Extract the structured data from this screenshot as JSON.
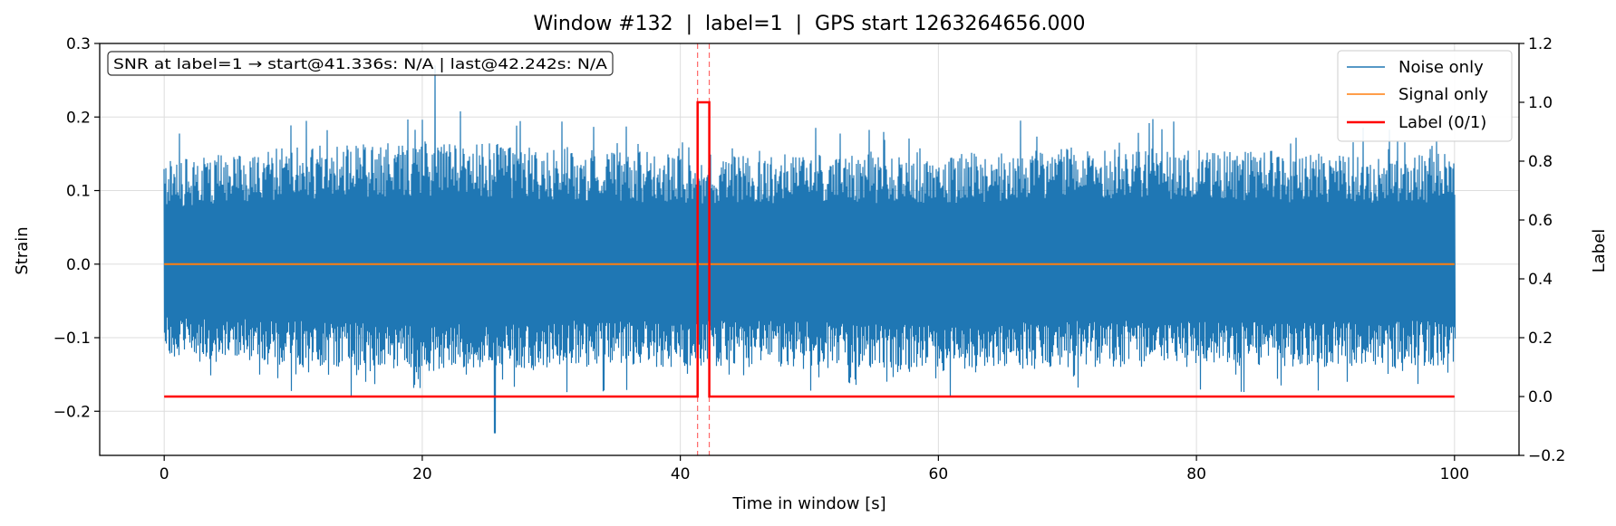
{
  "chart_data": {
    "type": "line",
    "title": "Window #132  |  label=1  |  GPS start 1263264656.000",
    "xlabel": "Time in window [s]",
    "ylabel": "Strain",
    "y2label": "Label",
    "xlim": [
      -5,
      105
    ],
    "ylim": [
      -0.26,
      0.3
    ],
    "y2lim": [
      -0.2,
      1.2
    ],
    "x_ticks": [
      0,
      20,
      40,
      60,
      80,
      100
    ],
    "x_tick_labels": [
      "0",
      "20",
      "40",
      "60",
      "80",
      "100"
    ],
    "y_ticks": [
      -0.2,
      -0.1,
      0.0,
      0.1,
      0.2,
      0.3
    ],
    "y_tick_labels": [
      "−0.2",
      "−0.1",
      "0.0",
      "0.1",
      "0.2",
      "0.3"
    ],
    "y2_ticks": [
      -0.2,
      0.0,
      0.2,
      0.4,
      0.6,
      0.8,
      1.0,
      1.2
    ],
    "y2_tick_labels": [
      "−0.2",
      "0.0",
      "0.2",
      "0.4",
      "0.6",
      "0.8",
      "1.0",
      "1.2"
    ],
    "grid": true,
    "legend_position": "top-right",
    "annotation": "SNR at label=1 → start@41.336s: N/A | last@42.242s: N/A",
    "vlines": [
      41.336,
      42.242
    ],
    "series": [
      {
        "name": "Noise only",
        "color": "#1f77b4",
        "axis": "left",
        "x_range": [
          0,
          100
        ],
        "envelope_x": [
          0,
          10,
          20,
          30,
          40,
          50,
          60,
          70,
          80,
          90,
          100
        ],
        "envelope_upper": [
          0.14,
          0.16,
          0.17,
          0.16,
          0.15,
          0.15,
          0.15,
          0.16,
          0.16,
          0.15,
          0.15
        ],
        "envelope_lower": [
          -0.13,
          -0.14,
          -0.15,
          -0.14,
          -0.14,
          -0.14,
          -0.15,
          -0.14,
          -0.14,
          -0.14,
          -0.14
        ],
        "peak_max": {
          "x": 21,
          "y": 0.27
        },
        "peak_min": {
          "x": 25.6,
          "y": -0.23
        }
      },
      {
        "name": "Signal only",
        "color": "#ff7f0e",
        "axis": "left",
        "x": [
          0,
          100
        ],
        "y": [
          0,
          0
        ]
      },
      {
        "name": "Label (0/1)",
        "color": "#ff0000",
        "axis": "right",
        "x": [
          0,
          41.336,
          41.336,
          42.242,
          42.242,
          100
        ],
        "y": [
          0,
          0,
          1,
          1,
          0,
          0
        ]
      }
    ]
  }
}
